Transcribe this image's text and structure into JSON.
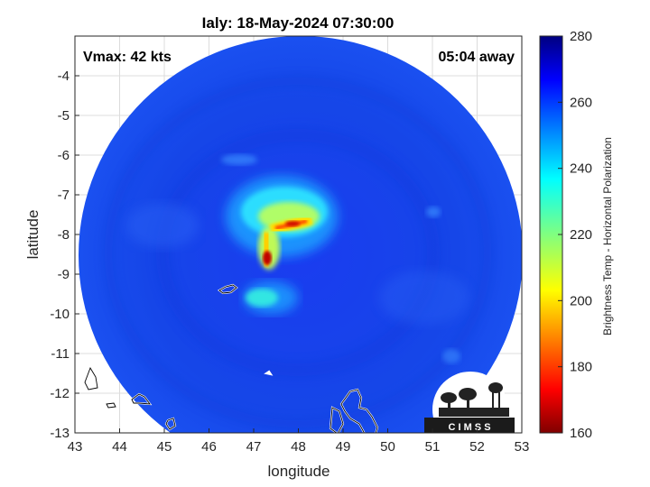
{
  "title": "Ialy: 18-May-2024 07:30:00",
  "vmax_label": "Vmax: 42 kts",
  "time_away_label": "05:04 away",
  "xlabel": "longitude",
  "ylabel": "latitude",
  "colorbar_label": "Brightness Temp - Horizontal Polarization",
  "x_ticks": [
    "43",
    "44",
    "45",
    "46",
    "47",
    "48",
    "49",
    "50",
    "51",
    "52",
    "53"
  ],
  "y_ticks": [
    "-4",
    "-5",
    "-6",
    "-7",
    "-8",
    "-9",
    "-10",
    "-11",
    "-12",
    "-13"
  ],
  "colorbar_ticks": [
    "280",
    "260",
    "240",
    "220",
    "200",
    "180",
    "160"
  ],
  "logo_text": "C I M S S",
  "colors": {
    "background_field": "#1440e0",
    "cold_core": "#c80000",
    "colormap": "jet"
  }
}
